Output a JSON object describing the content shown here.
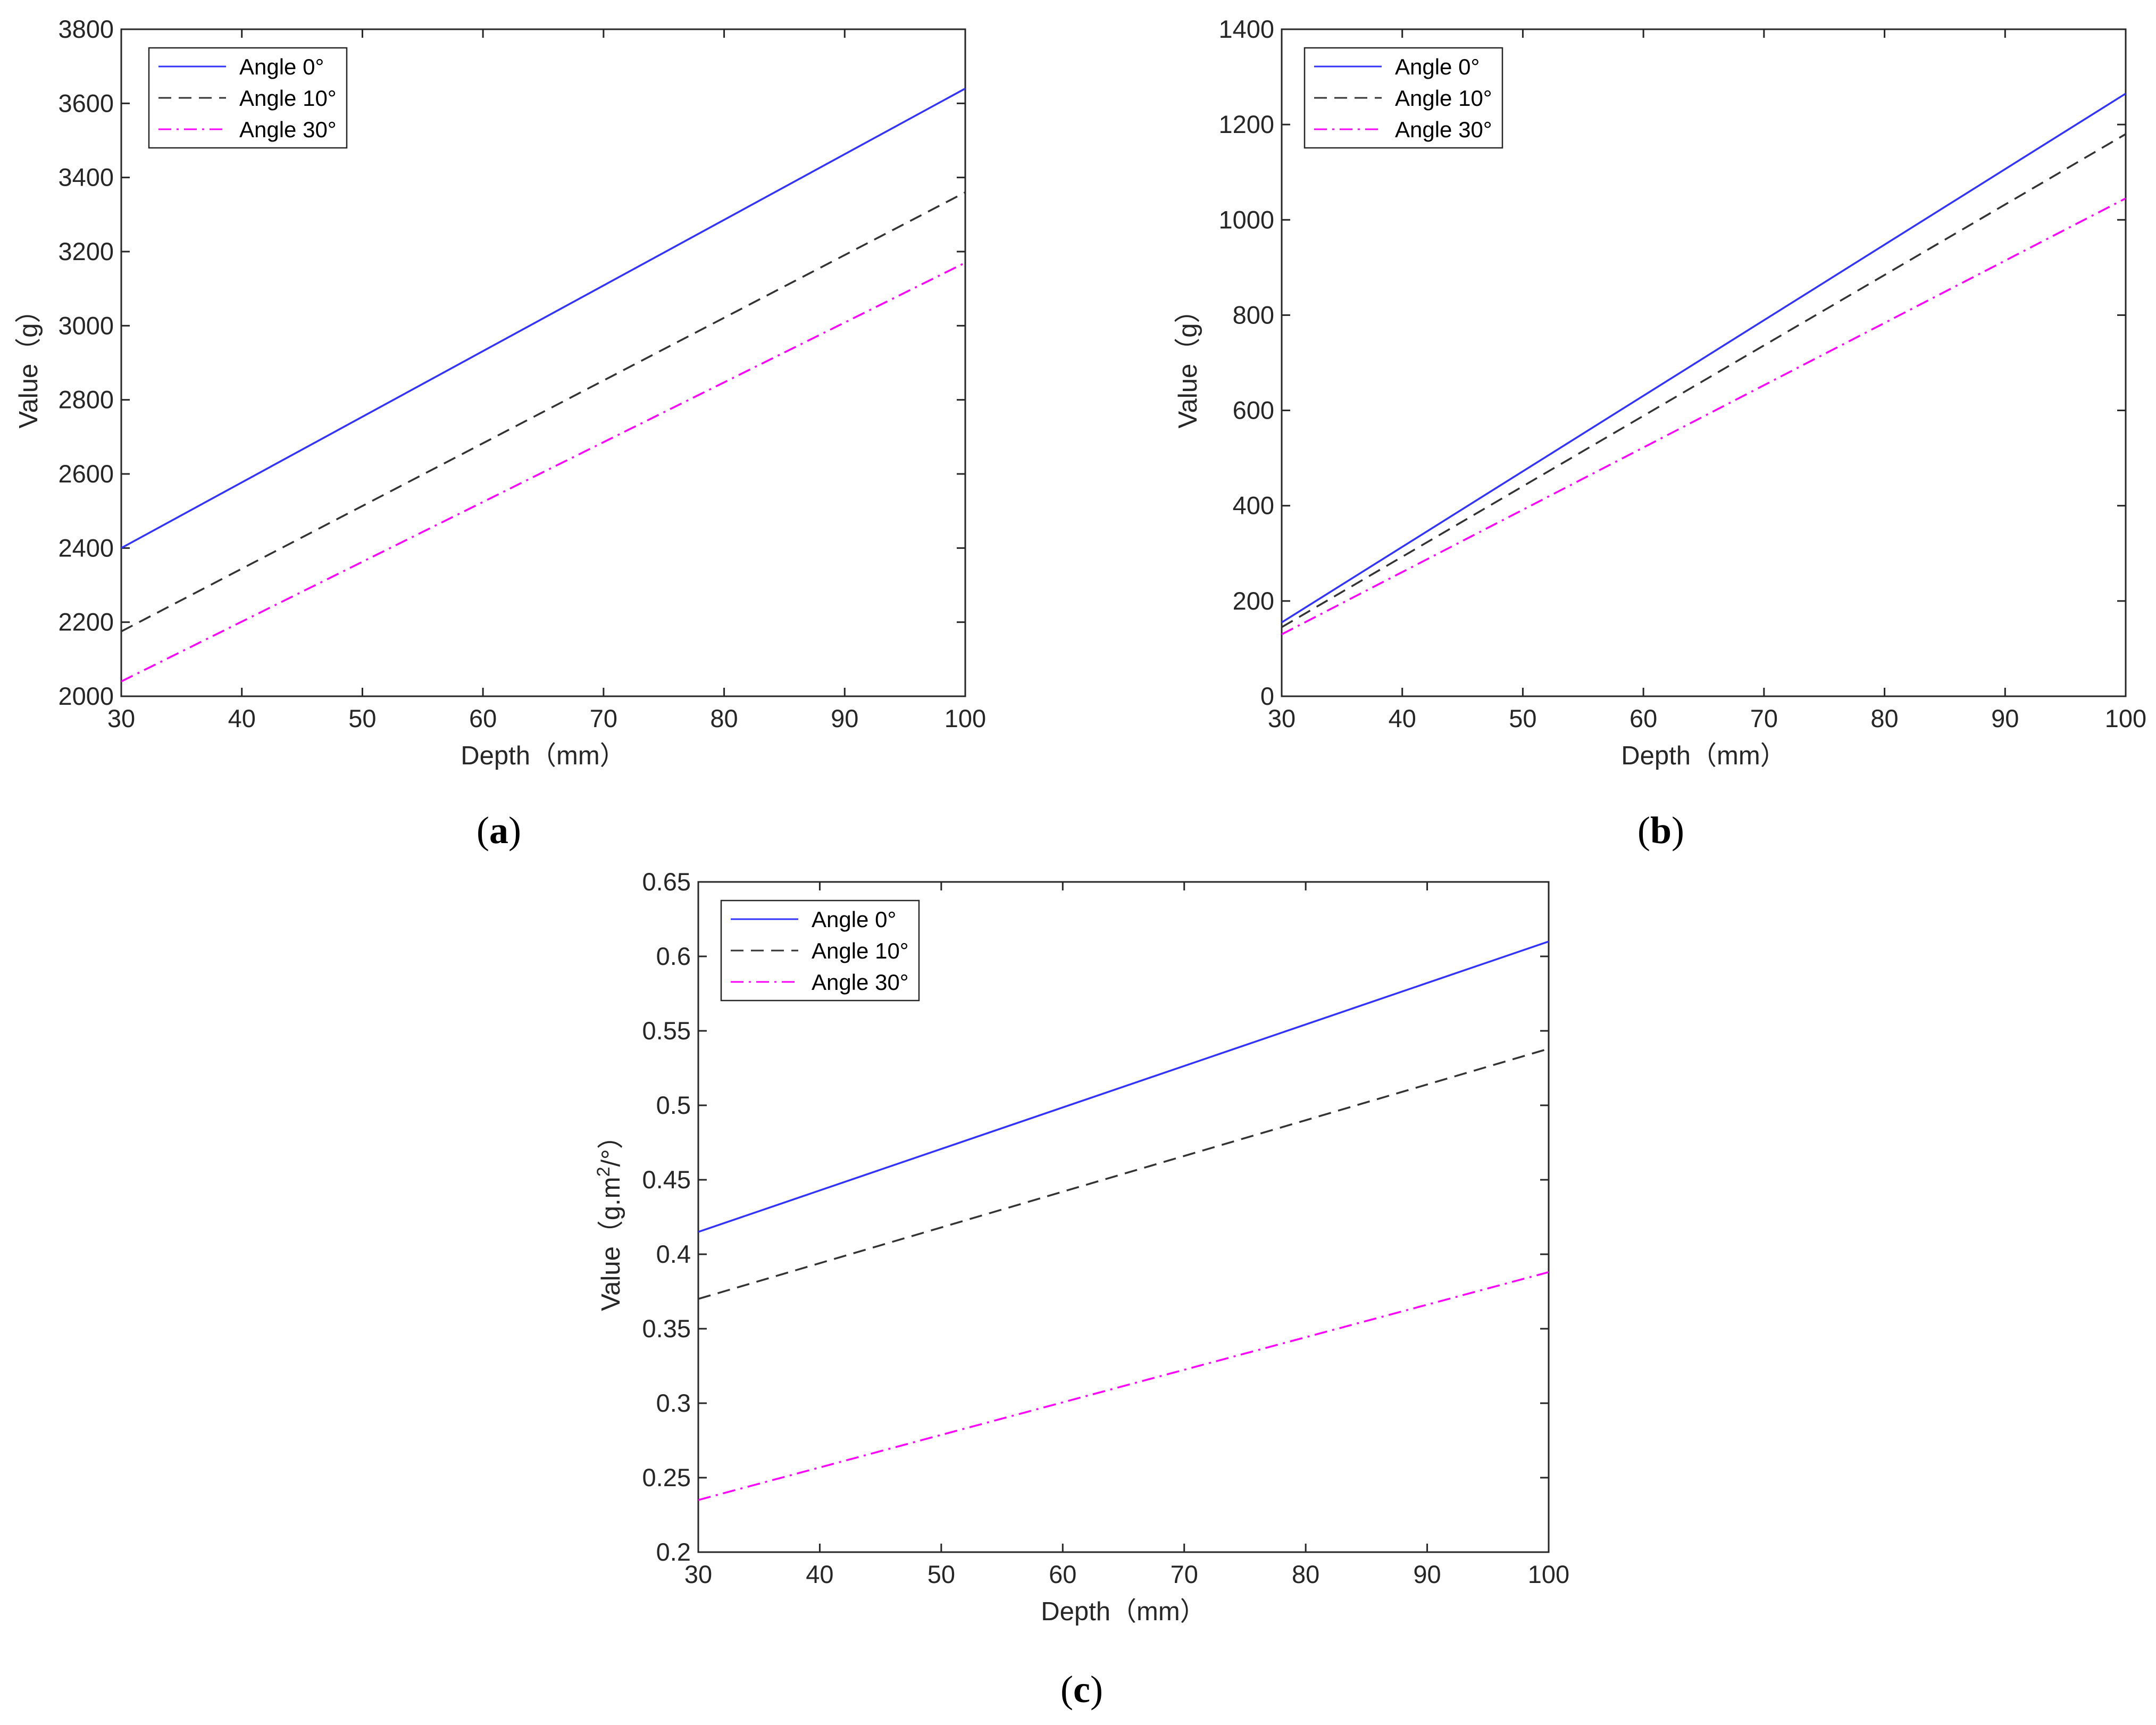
{
  "chart_data": [
    {
      "type": "line",
      "panel": "a",
      "xlabel": "Depth（mm）",
      "ylabel": "Value（g）",
      "xlim": [
        30,
        100
      ],
      "ylim": [
        2000,
        3800
      ],
      "xticks": [
        30,
        40,
        50,
        60,
        70,
        80,
        90,
        100
      ],
      "yticks": [
        2000,
        2200,
        2400,
        2600,
        2800,
        3000,
        3200,
        3400,
        3600,
        3800
      ],
      "x": [
        30,
        100
      ],
      "legend_position": "top-left",
      "series": [
        {
          "name": "Angle 0°",
          "values": [
            2400,
            3640
          ],
          "color": "#3333ff",
          "style": "solid"
        },
        {
          "name": "Angle 10°",
          "values": [
            2175,
            3360
          ],
          "color": "#333333",
          "style": "dashed"
        },
        {
          "name": "Angle 30°",
          "values": [
            2040,
            3170
          ],
          "color": "#ff00ff",
          "style": "dashdot"
        }
      ]
    },
    {
      "type": "line",
      "panel": "b",
      "xlabel": "Depth（mm）",
      "ylabel": "Value（g）",
      "xlim": [
        30,
        100
      ],
      "ylim": [
        0,
        1400
      ],
      "xticks": [
        30,
        40,
        50,
        60,
        70,
        80,
        90,
        100
      ],
      "yticks": [
        0,
        200,
        400,
        600,
        800,
        1000,
        1200,
        1400
      ],
      "x": [
        30,
        100
      ],
      "legend_position": "top-left",
      "series": [
        {
          "name": "Angle 0°",
          "values": [
            155,
            1265
          ],
          "color": "#3333ff",
          "style": "solid"
        },
        {
          "name": "Angle 10°",
          "values": [
            145,
            1180
          ],
          "color": "#333333",
          "style": "dashed"
        },
        {
          "name": "Angle 30°",
          "values": [
            130,
            1045
          ],
          "color": "#ff00ff",
          "style": "dashdot"
        }
      ]
    },
    {
      "type": "line",
      "panel": "c",
      "xlabel": "Depth（mm）",
      "ylabel_prefix": "Value（g.m",
      "ylabel_sup": "2",
      "ylabel_suffix": "/°）",
      "xlim": [
        30,
        100
      ],
      "ylim": [
        0.2,
        0.65
      ],
      "xticks": [
        30,
        40,
        50,
        60,
        70,
        80,
        90,
        100
      ],
      "yticks": [
        0.2,
        0.25,
        0.3,
        0.35,
        0.4,
        0.45,
        0.5,
        0.55,
        0.6,
        0.65
      ],
      "x": [
        30,
        100
      ],
      "legend_position": "top-left",
      "series": [
        {
          "name": "Angle 0°",
          "values": [
            0.415,
            0.61
          ],
          "color": "#3333ff",
          "style": "solid"
        },
        {
          "name": "Angle 10°",
          "values": [
            0.37,
            0.538
          ],
          "color": "#333333",
          "style": "dashed"
        },
        {
          "name": "Angle 30°",
          "values": [
            0.235,
            0.388
          ],
          "color": "#ff00ff",
          "style": "dashdot"
        }
      ]
    }
  ],
  "captions": {
    "a": {
      "open": "(",
      "letter": "a",
      "close": ")"
    },
    "b": {
      "open": "(",
      "letter": "b",
      "close": ")"
    },
    "c": {
      "open": "(",
      "letter": "c",
      "close": ")"
    }
  }
}
